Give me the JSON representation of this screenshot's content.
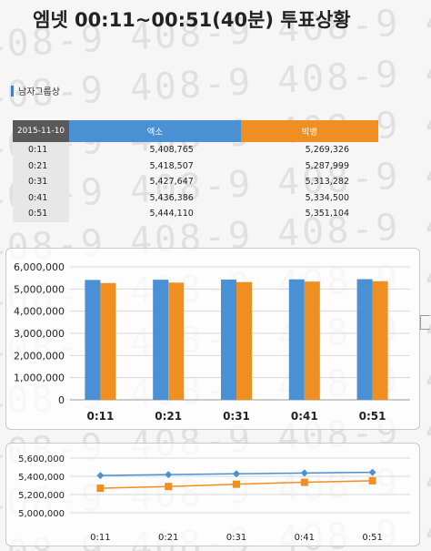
{
  "page": {
    "title": "엠넷 00:11~00:51(40분) 투표상황",
    "section_label": "남자그룹상",
    "watermark_text": "408-9 408-9 408-9 408-9 408-9 408-9"
  },
  "table": {
    "date": "2015-11-10",
    "headers": [
      "엑소",
      "빅뱅"
    ],
    "rows": [
      {
        "time": "0:11",
        "a": "5,408,765",
        "b": "5,269,326"
      },
      {
        "time": "0:21",
        "a": "5,418,507",
        "b": "5,287,999"
      },
      {
        "time": "0:31",
        "a": "5,427,647",
        "b": "5,313,282"
      },
      {
        "time": "0:41",
        "a": "5,436,386",
        "b": "5,334,500"
      },
      {
        "time": "0:51",
        "a": "5,444,110",
        "b": "5,351,104"
      }
    ]
  },
  "colors": {
    "series_a": "#4a90d4",
    "series_b": "#ef8f22",
    "header_date": "#595959"
  },
  "chart_data": [
    {
      "type": "bar",
      "categories": [
        "0:11",
        "0:21",
        "0:31",
        "0:41",
        "0:51"
      ],
      "series": [
        {
          "values": [
            5408765,
            5418507,
            5427647,
            5436386,
            5444110
          ]
        },
        {
          "values": [
            5269326,
            5287999,
            5313282,
            5334500,
            5351104
          ]
        }
      ],
      "ylim": [
        0,
        6000000
      ],
      "yticks": [
        "6,000,000",
        "5,000,000",
        "4,000,000",
        "3,000,000",
        "2,000,000",
        "1,000,000",
        "0"
      ],
      "grid": true
    },
    {
      "type": "line",
      "categories": [
        "0:11",
        "0:21",
        "0:31",
        "0:41",
        "0:51"
      ],
      "series": [
        {
          "values": [
            5408765,
            5418507,
            5427647,
            5436386,
            5444110
          ],
          "marker": "diamond"
        },
        {
          "values": [
            5269326,
            5287999,
            5313282,
            5334500,
            5351104
          ],
          "marker": "square"
        }
      ],
      "ylim": [
        5000000,
        5600000
      ],
      "yticks": [
        "5,600,000",
        "5,400,000",
        "5,200,000",
        "5,000,000"
      ],
      "grid": true
    }
  ]
}
